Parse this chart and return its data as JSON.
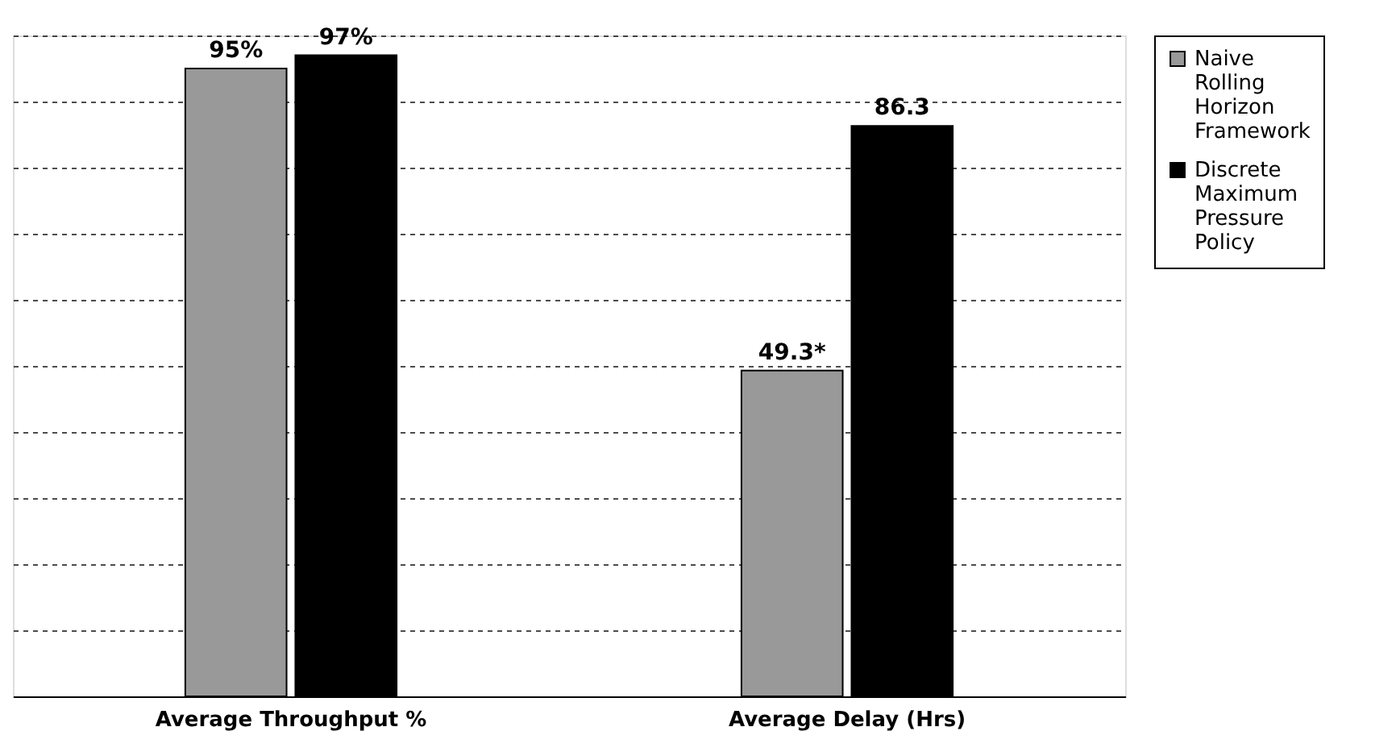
{
  "chart_data": {
    "type": "bar",
    "categories": [
      "Average Throughput %",
      "Average Delay (Hrs)"
    ],
    "series": [
      {
        "name": "Naive Rolling Horizon Framework",
        "color": "#999999",
        "values": [
          95,
          49.3
        ],
        "value_labels": [
          "95%",
          "49.3*"
        ]
      },
      {
        "name": "Discrete Maximum Pressure Policy",
        "color": "#000000",
        "values": [
          97,
          86.3
        ],
        "value_labels": [
          "97%",
          "86.3"
        ]
      }
    ],
    "grid": "y",
    "legend": "top right",
    "tick_labels": "x"
  }
}
